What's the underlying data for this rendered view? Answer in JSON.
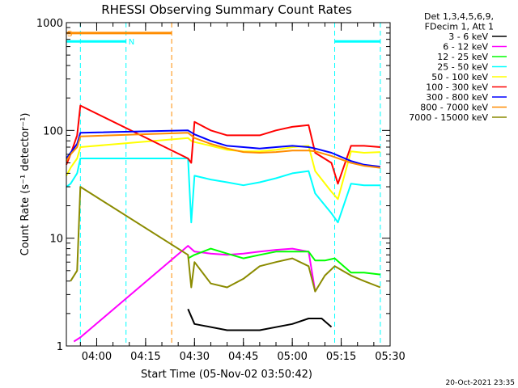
{
  "chart_data": {
    "type": "line",
    "title": "RHESSI Observing Summary Count Rates",
    "xlabel": "Start Time (05-Nov-02 03:50:42)",
    "ylabel": "Count Rate (s⁻¹ detector⁻¹)",
    "y_scale": "log",
    "ylim": [
      1,
      1000
    ],
    "xlim": [
      "03:50:42",
      "05:30:00"
    ],
    "x_ticks": [
      "04:00",
      "04:15",
      "04:30",
      "04:45",
      "05:00",
      "05:15",
      "05:30"
    ],
    "y_ticks": [
      "1",
      "10",
      "100",
      "1000"
    ],
    "legend_header": [
      "Det 1,3,4,5,6,9,",
      "FDecim 1, Att 1"
    ],
    "legend_position": "right",
    "footer": "20-Oct-2021 23:35",
    "series": [
      {
        "name": "3 - 6 keV",
        "color": "#000000",
        "x": [
          "04:28",
          "04:30",
          "04:40",
          "04:50",
          "05:00",
          "05:05",
          "05:09",
          "05:12"
        ],
        "y": [
          2.2,
          1.6,
          1.4,
          1.4,
          1.6,
          1.8,
          1.8,
          1.5
        ]
      },
      {
        "name": "6 - 12 keV",
        "color": "#ff00ff",
        "x": [
          "03:53",
          "03:55",
          "04:28",
          "04:30",
          "04:35",
          "04:40",
          "04:45",
          "04:50",
          "04:55",
          "05:00",
          "05:05",
          "05:07"
        ],
        "y": [
          1.1,
          1.2,
          8.5,
          7.5,
          7.2,
          7.0,
          7.2,
          7.5,
          7.8,
          8.0,
          7.5,
          3.2
        ]
      },
      {
        "name": "12 - 25 keV",
        "color": "#00ff00",
        "x": [
          "04:28",
          "04:30",
          "04:35",
          "04:40",
          "04:45",
          "04:50",
          "04:55",
          "05:00",
          "05:05",
          "05:07",
          "05:10",
          "05:13",
          "05:18",
          "05:22",
          "05:27"
        ],
        "y": [
          6.5,
          7.0,
          8.0,
          7.2,
          6.5,
          7.0,
          7.5,
          7.5,
          7.5,
          6.2,
          6.2,
          6.5,
          4.8,
          4.8,
          4.6
        ]
      },
      {
        "name": "25 - 50 keV",
        "color": "#00ffff",
        "x": [
          "03:50:42",
          "03:52",
          "03:54",
          "03:55",
          "04:28",
          "04:29",
          "04:30",
          "04:35",
          "04:40",
          "04:45",
          "04:50",
          "04:55",
          "05:00",
          "05:05",
          "05:07",
          "05:12",
          "05:14",
          "05:18",
          "05:22",
          "05:27"
        ],
        "y": [
          30,
          32,
          40,
          55,
          55,
          14,
          38,
          35,
          33,
          31,
          33,
          36,
          40,
          42,
          26,
          17,
          14,
          32,
          31,
          31
        ]
      },
      {
        "name": "50 - 100 keV",
        "color": "#ffff00",
        "x": [
          "03:50:42",
          "03:52",
          "03:54",
          "03:55",
          "04:28",
          "04:29",
          "04:30",
          "04:35",
          "04:40",
          "04:45",
          "04:50",
          "04:55",
          "05:00",
          "05:05",
          "05:07",
          "05:12",
          "05:14",
          "05:18",
          "05:22",
          "05:27"
        ],
        "y": [
          38,
          45,
          55,
          70,
          85,
          80,
          78,
          72,
          66,
          64,
          64,
          66,
          70,
          72,
          42,
          27,
          23,
          64,
          62,
          63
        ]
      },
      {
        "name": "100 - 300 keV",
        "color": "#ff0000",
        "x": [
          "03:50:42",
          "03:52",
          "03:54",
          "03:55",
          "04:28",
          "04:29",
          "04:30",
          "04:35",
          "04:40",
          "04:45",
          "04:50",
          "04:55",
          "05:00",
          "05:05",
          "05:07",
          "05:12",
          "05:14",
          "05:18",
          "05:22",
          "05:27"
        ],
        "y": [
          48,
          60,
          90,
          170,
          55,
          50,
          120,
          100,
          90,
          90,
          90,
          100,
          108,
          112,
          62,
          50,
          32,
          72,
          72,
          70
        ]
      },
      {
        "name": "300 - 800 keV",
        "color": "#0000ff",
        "x": [
          "03:50:42",
          "03:52",
          "03:54",
          "03:55",
          "04:28",
          "04:30",
          "04:35",
          "04:40",
          "04:45",
          "04:50",
          "04:55",
          "05:00",
          "05:05",
          "05:07",
          "05:12",
          "05:18",
          "05:22",
          "05:27"
        ],
        "y": [
          55,
          62,
          75,
          95,
          100,
          92,
          80,
          72,
          70,
          68,
          70,
          72,
          70,
          68,
          62,
          52,
          48,
          46
        ]
      },
      {
        "name": "800 - 7000 keV",
        "color": "#ff8c00",
        "x": [
          "03:50:42",
          "03:52",
          "03:54",
          "03:55",
          "04:28",
          "04:30",
          "04:35",
          "04:40",
          "04:45",
          "04:50",
          "04:55",
          "05:00",
          "05:05",
          "05:07",
          "05:12",
          "05:18",
          "05:22",
          "05:27"
        ],
        "y": [
          52,
          60,
          70,
          88,
          95,
          85,
          75,
          68,
          63,
          62,
          63,
          65,
          65,
          64,
          58,
          50,
          47,
          45
        ]
      },
      {
        "name": "7000 - 15000 keV",
        "color": "#8b8b00",
        "x": [
          "03:52",
          "03:54",
          "03:55",
          "04:28",
          "04:29",
          "04:30",
          "04:35",
          "04:40",
          "04:45",
          "04:50",
          "04:55",
          "05:00",
          "05:05",
          "05:07",
          "05:10",
          "05:13",
          "05:18",
          "05:22",
          "05:27"
        ],
        "y": [
          4.0,
          5.0,
          30,
          7.0,
          3.5,
          6.0,
          3.8,
          3.5,
          4.2,
          5.5,
          6.0,
          6.5,
          5.5,
          3.2,
          4.5,
          5.5,
          4.5,
          4.0,
          3.5
        ]
      }
    ],
    "flag_bars": [
      {
        "label": "S",
        "color": "#ff8c00",
        "x_start": "03:50:42",
        "x_end": "04:23",
        "level": 800
      },
      {
        "label": "N",
        "color": "#00ffff",
        "x_start": "03:50:42",
        "x_end": "04:09",
        "level": 670
      },
      {
        "label": "",
        "color": "#00ffff",
        "x_start": "05:13",
        "x_end": "05:27",
        "level": 670
      }
    ],
    "vertical_markers": [
      {
        "color": "#00ffff",
        "x": "03:55"
      },
      {
        "color": "#00ffff",
        "x": "04:09"
      },
      {
        "color": "#ff8c00",
        "x": "04:23"
      },
      {
        "color": "#00ffff",
        "x": "05:13"
      },
      {
        "color": "#00ffff",
        "x": "05:27"
      }
    ]
  }
}
